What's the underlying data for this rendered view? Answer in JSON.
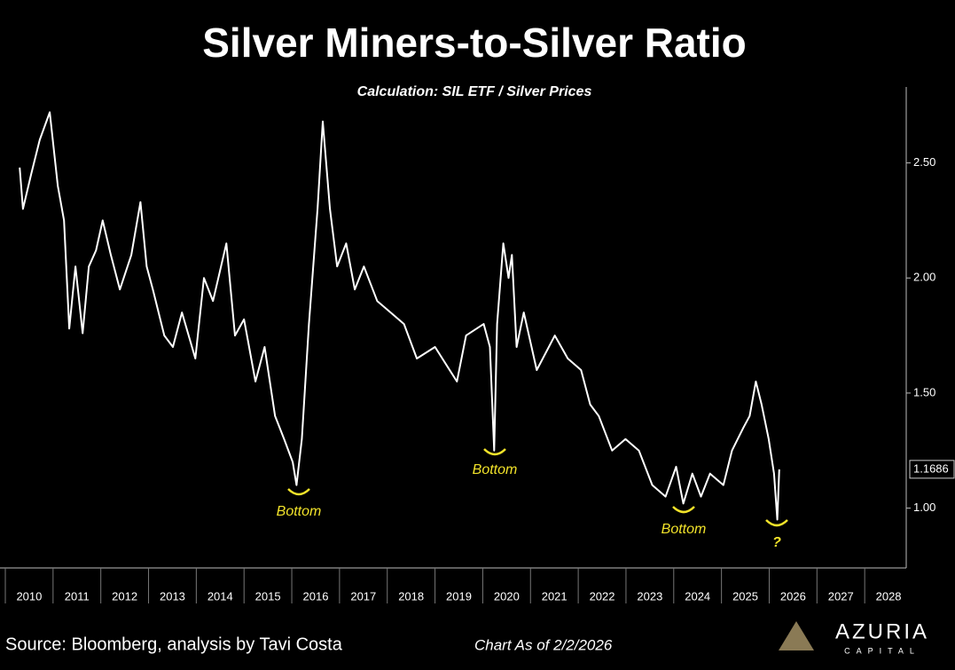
{
  "chart_data": {
    "type": "line",
    "title": "Silver Miners-to-Silver Ratio",
    "subtitle": "Calculation: SIL ETF / Silver Prices",
    "color": "#ffffff",
    "grid": false,
    "x": [
      2010.3,
      2010.37,
      2010.54,
      2010.72,
      2010.93,
      2011.1,
      2011.23,
      2011.34,
      2011.47,
      2011.62,
      2011.75,
      2011.9,
      2012.04,
      2012.21,
      2012.4,
      2012.64,
      2012.83,
      2012.96,
      2013.09,
      2013.33,
      2013.51,
      2013.7,
      2013.98,
      2014.16,
      2014.35,
      2014.63,
      2014.81,
      2015.0,
      2015.24,
      2015.43,
      2015.65,
      2015.84,
      2016.02,
      2016.1,
      2016.21,
      2016.36,
      2016.54,
      2016.65,
      2016.8,
      2016.95,
      2017.14,
      2017.32,
      2017.51,
      2017.79,
      2018.07,
      2018.35,
      2018.62,
      2019.0,
      2019.46,
      2019.65,
      2020.02,
      2020.15,
      2020.24,
      2020.3,
      2020.43,
      2020.54,
      2020.61,
      2020.71,
      2020.86,
      2021.13,
      2021.51,
      2021.78,
      2022.06,
      2022.25,
      2022.43,
      2022.71,
      2022.99,
      2023.27,
      2023.55,
      2023.83,
      2024.05,
      2024.2,
      2024.39,
      2024.57,
      2024.76,
      2025.04,
      2025.22,
      2025.46,
      2025.59,
      2025.72,
      2025.84,
      2025.99,
      2026.1,
      2026.17,
      2026.21
    ],
    "values": [
      2.48,
      2.3,
      2.45,
      2.6,
      2.72,
      2.4,
      2.25,
      1.78,
      2.05,
      1.76,
      2.05,
      2.12,
      2.25,
      2.1,
      1.95,
      2.1,
      2.33,
      2.05,
      1.95,
      1.75,
      1.7,
      1.85,
      1.65,
      2.0,
      1.9,
      2.15,
      1.75,
      1.82,
      1.55,
      1.7,
      1.4,
      1.3,
      1.2,
      1.1,
      1.3,
      1.8,
      2.3,
      2.68,
      2.3,
      2.05,
      2.15,
      1.95,
      2.05,
      1.9,
      1.85,
      1.8,
      1.65,
      1.7,
      1.55,
      1.75,
      1.8,
      1.7,
      1.25,
      1.8,
      2.15,
      2.0,
      2.1,
      1.7,
      1.85,
      1.6,
      1.75,
      1.65,
      1.6,
      1.45,
      1.4,
      1.25,
      1.3,
      1.25,
      1.1,
      1.05,
      1.18,
      1.02,
      1.15,
      1.05,
      1.15,
      1.1,
      1.25,
      1.35,
      1.4,
      1.55,
      1.45,
      1.3,
      1.15,
      0.95,
      1.1686
    ],
    "xlim": [
      2010,
      2028.87
    ],
    "xticks": [
      2010,
      2011,
      2012,
      2013,
      2014,
      2015,
      2016,
      2017,
      2018,
      2019,
      2020,
      2021,
      2022,
      2023,
      2024,
      2025,
      2026,
      2027,
      2028
    ],
    "ylim": [
      0.74,
      2.83
    ],
    "yticks": [
      {
        "value": 1.0,
        "label": "1.00"
      },
      {
        "value": 1.5,
        "label": "1.50"
      },
      {
        "value": 2.0,
        "label": "2.00"
      },
      {
        "value": 2.5,
        "label": "2.50"
      }
    ],
    "annotations": [
      "Bottom",
      "Bottom",
      "Bottom",
      "?"
    ],
    "source": "Source: Bloomberg, analysis by Tavi Costa",
    "date_note": "Chart As of 2/2/2026",
    "logo": {
      "name": "AZURIA",
      "tagline": "CAPITAL"
    }
  }
}
